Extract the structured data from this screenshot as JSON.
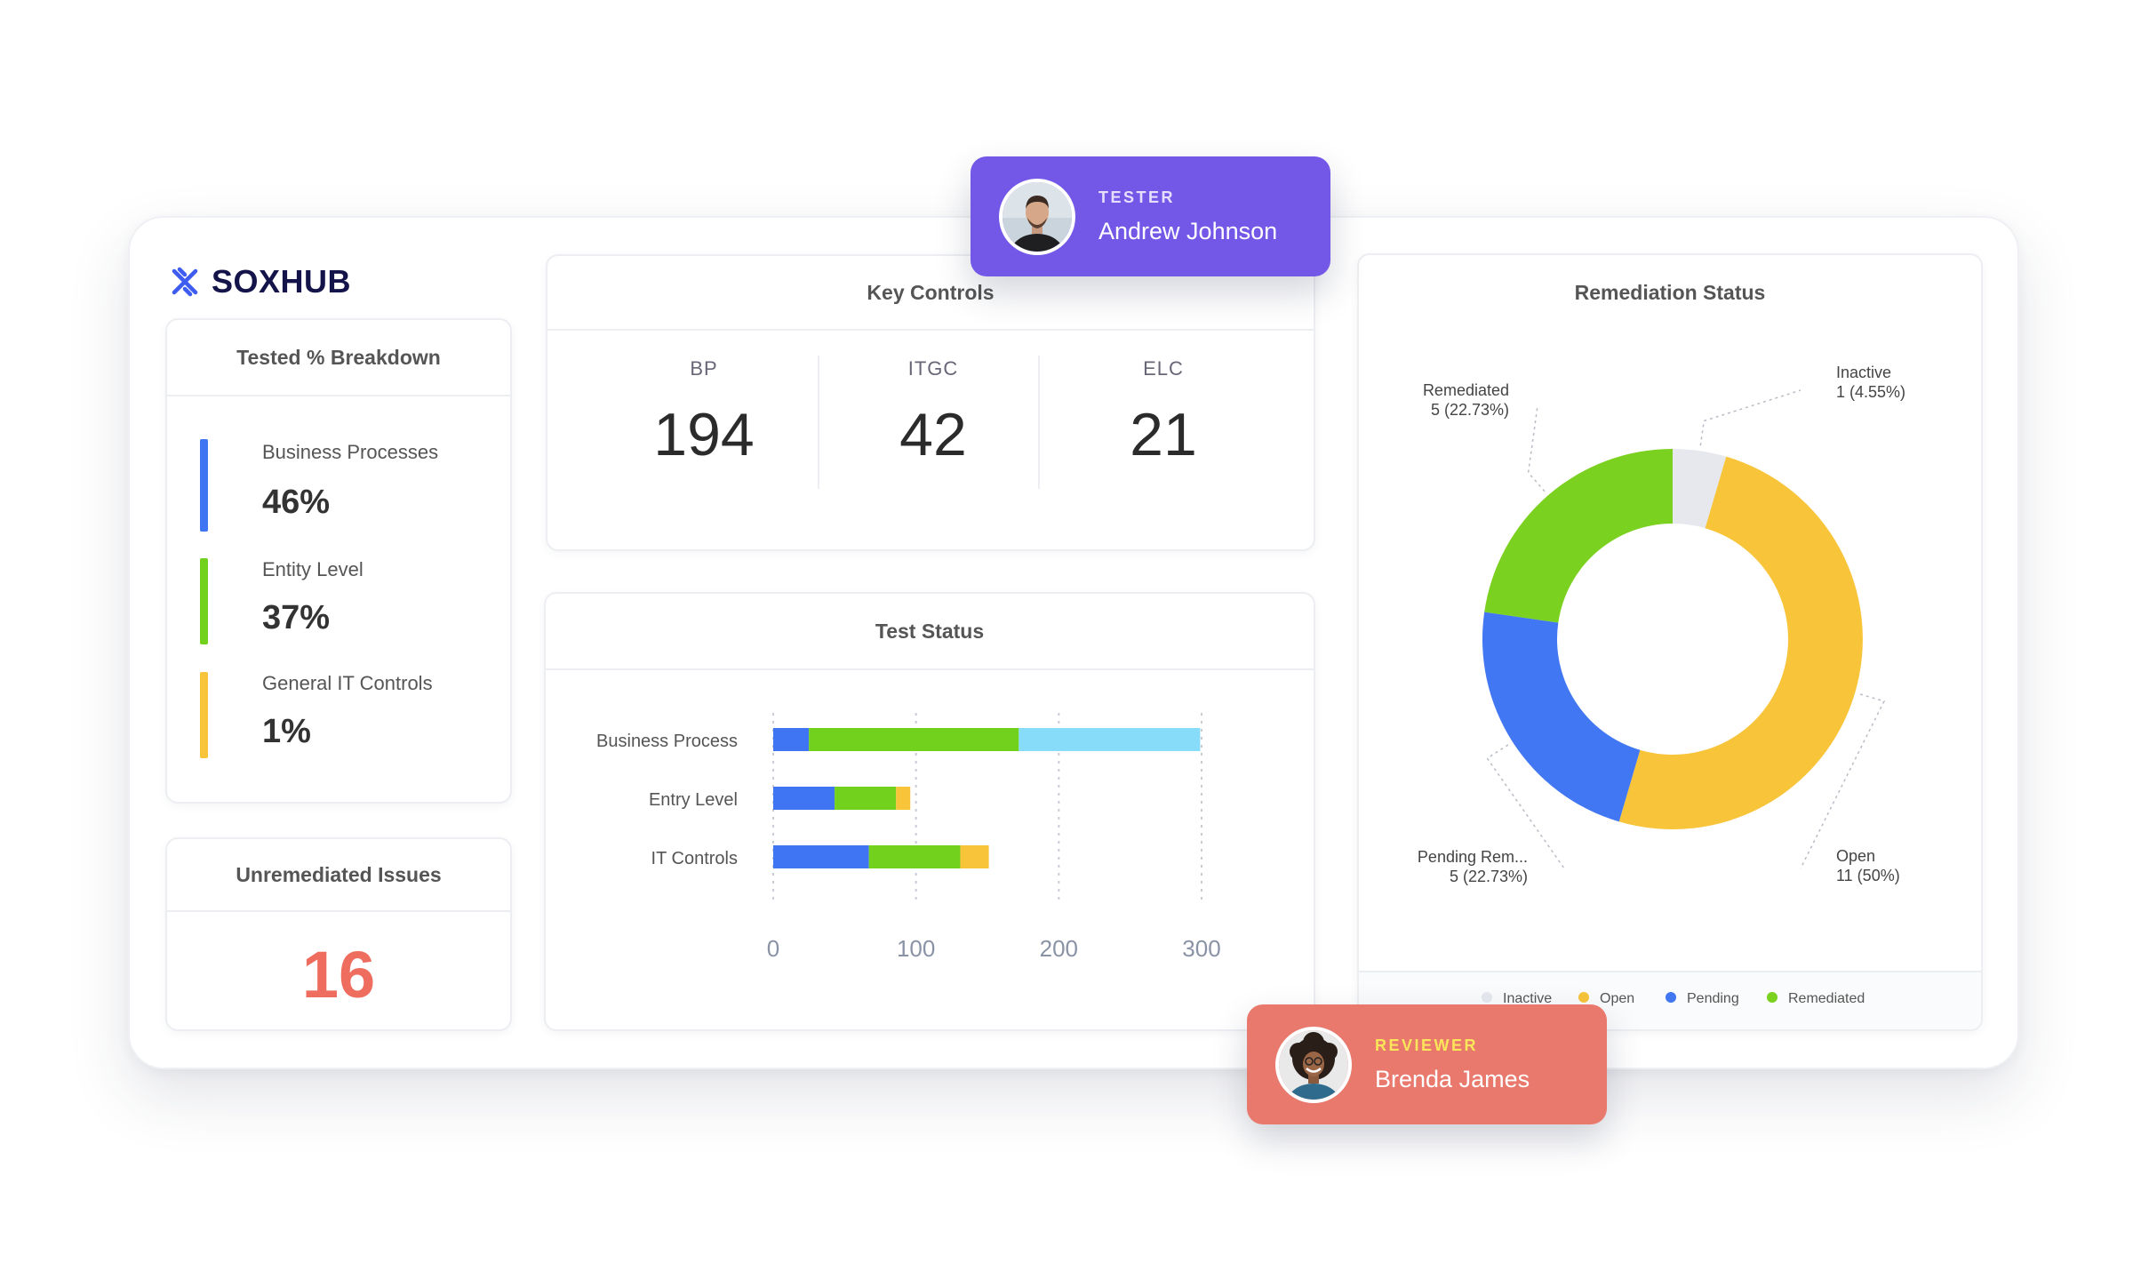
{
  "app": {
    "name": "SOXHUB"
  },
  "tested_breakdown": {
    "title": "Tested % Breakdown",
    "items": [
      {
        "label": "Business Processes",
        "value": "46%",
        "color": "#3f74f2"
      },
      {
        "label": "Entity Level",
        "value": "37%",
        "color": "#72d11d"
      },
      {
        "label": "General IT Controls",
        "value": "1%",
        "color": "#f8c43a"
      }
    ]
  },
  "unremediated": {
    "title": "Unremediated Issues",
    "value": "16",
    "color": "#ee6d5f"
  },
  "key_controls": {
    "title": "Key Controls",
    "items": [
      {
        "label": "BP",
        "value": "194"
      },
      {
        "label": "ITGC",
        "value": "42"
      },
      {
        "label": "ELC",
        "value": "21"
      }
    ]
  },
  "test_status": {
    "title": "Test Status",
    "chart_data": {
      "type": "bar",
      "orientation": "horizontal",
      "stacked": true,
      "categories": [
        "Business Process",
        "Entry Level",
        "IT Controls"
      ],
      "series": [
        {
          "color": "#3f74f2",
          "values": [
            25,
            43,
            67
          ]
        },
        {
          "color": "#72d11d",
          "values": [
            147,
            43,
            64
          ]
        },
        {
          "color": "#f8c43a",
          "values": [
            0,
            10,
            20
          ]
        },
        {
          "color": "#86dcf9",
          "values": [
            127,
            0,
            0
          ]
        }
      ],
      "xlim": [
        0,
        300
      ],
      "xticks": [
        "0",
        "100",
        "200",
        "300"
      ],
      "grid": true
    }
  },
  "remediation_status": {
    "title": "Remediation Status",
    "chart_data": {
      "type": "pie",
      "donut": true,
      "slices": [
        {
          "name": "Inactive",
          "label": "Inactive",
          "detail": "1 (4.55%)",
          "value": 1,
          "color": "#e6e8ee"
        },
        {
          "name": "Open",
          "label": "Open",
          "detail": "11 (50%)",
          "value": 11,
          "color": "#f8c43a"
        },
        {
          "name": "Pending",
          "label": "Pending Rem...",
          "detail": "5 (22.73%)",
          "value": 5,
          "color": "#4177f3"
        },
        {
          "name": "Remediated",
          "label": "Remediated",
          "detail": "5 (22.73%)",
          "value": 5,
          "color": "#7ad11f"
        }
      ],
      "legend": [
        "Inactive",
        "Open",
        "Pending",
        "Remediated"
      ],
      "legend_position": "bottom"
    }
  },
  "tester": {
    "role": "TESTER",
    "name": "Andrew Johnson"
  },
  "reviewer": {
    "role": "REVIEWER",
    "name": "Brenda James"
  }
}
